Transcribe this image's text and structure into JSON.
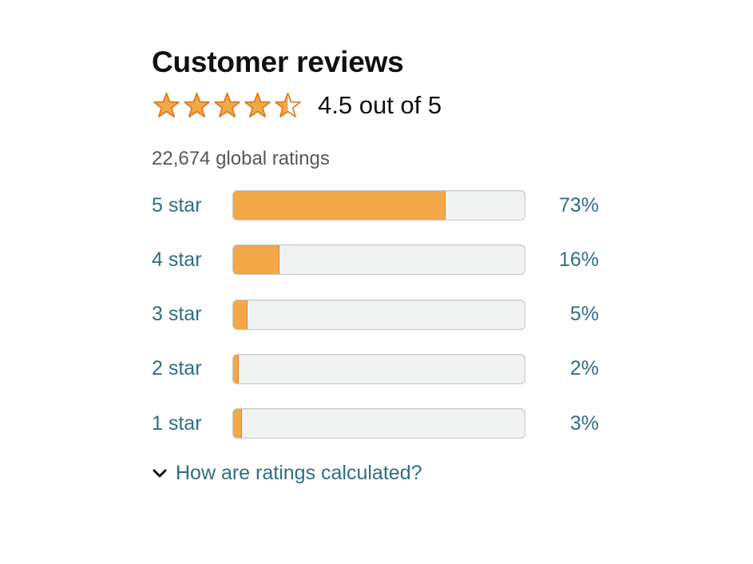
{
  "header": {
    "title": "Customer reviews"
  },
  "rating": {
    "value": 4.5,
    "text": "4.5 out of 5",
    "max_stars": 5
  },
  "global_ratings": "22,674 global ratings",
  "histogram": [
    {
      "label": "5 star",
      "percent": 73,
      "percent_text": "73%"
    },
    {
      "label": "4 star",
      "percent": 16,
      "percent_text": "16%"
    },
    {
      "label": "3 star",
      "percent": 5,
      "percent_text": "5%"
    },
    {
      "label": "2 star",
      "percent": 2,
      "percent_text": "2%"
    },
    {
      "label": "1 star",
      "percent": 3,
      "percent_text": "3%"
    }
  ],
  "calculation_link": {
    "icon": "chevron-down-icon",
    "label": "How are ratings calculated?"
  },
  "colors": {
    "star": "#f3a847",
    "star_stroke": "#de7921",
    "link": "#2f6f85",
    "bar_track": "#f0f2f2",
    "bar_fill": "#f3a847"
  }
}
